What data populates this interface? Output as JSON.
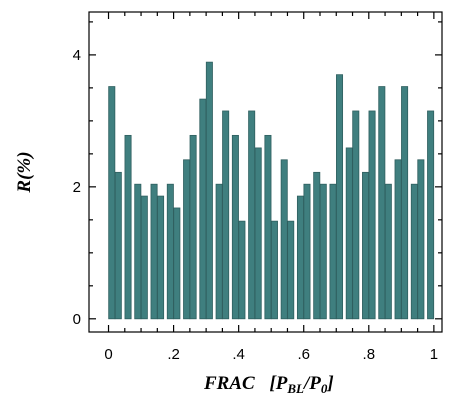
{
  "chart_data": {
    "type": "bar",
    "title": "",
    "xlabel": {
      "main": "FRAC",
      "open": "[",
      "p1": "P",
      "sub1": "BL",
      "slash": "/",
      "p2": "P",
      "sub2": "0",
      "close": "]"
    },
    "ylabel": "R(%)",
    "xlim": [
      -0.06,
      1.025
    ],
    "ylim": [
      -0.2,
      4.65
    ],
    "x_ticks": [
      0,
      0.2,
      0.4,
      0.6,
      0.8,
      1.0
    ],
    "x_tick_labels": [
      "0",
      ".2",
      ".4",
      ".6",
      ".8",
      "1"
    ],
    "y_ticks": [
      0,
      2,
      4
    ],
    "y_tick_labels": [
      "0",
      "2",
      "4"
    ],
    "bar_color": "#3f7f7f",
    "x": [
      0.01,
      0.03,
      0.06,
      0.09,
      0.11,
      0.14,
      0.16,
      0.19,
      0.21,
      0.24,
      0.26,
      0.29,
      0.31,
      0.34,
      0.36,
      0.39,
      0.41,
      0.44,
      0.46,
      0.49,
      0.51,
      0.54,
      0.56,
      0.59,
      0.61,
      0.64,
      0.66,
      0.69,
      0.71,
      0.74,
      0.76,
      0.79,
      0.81,
      0.84,
      0.86,
      0.89,
      0.91,
      0.94,
      0.96,
      0.99
    ],
    "values": [
      3.52,
      2.22,
      2.78,
      2.04,
      1.86,
      2.04,
      1.86,
      2.04,
      1.68,
      2.41,
      2.78,
      3.33,
      3.89,
      2.04,
      3.15,
      2.78,
      1.48,
      3.15,
      2.59,
      2.78,
      1.48,
      2.41,
      1.48,
      1.86,
      2.04,
      2.22,
      2.04,
      2.04,
      3.7,
      2.59,
      3.15,
      2.22,
      3.15,
      3.52,
      2.04,
      2.41,
      3.52,
      2.04,
      2.41,
      3.15
    ]
  }
}
